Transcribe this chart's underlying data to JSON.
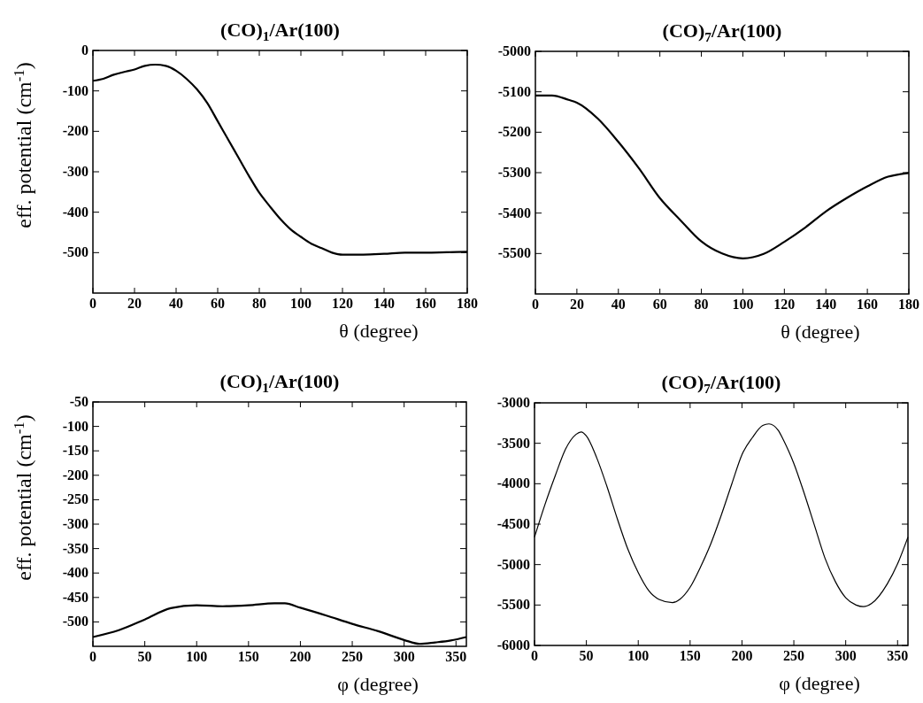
{
  "chart_data": [
    {
      "type": "line",
      "title": "(CO)$_{1}$/Ar(100)",
      "xlabel": "θ (degree)",
      "ylabel": "eff. potential (cm$^{-1}$)",
      "xlim": [
        0,
        180
      ],
      "xticks": [
        0,
        20,
        40,
        60,
        80,
        100,
        120,
        140,
        160,
        180
      ],
      "ylim": [
        -600,
        0
      ],
      "yticks": [
        0,
        -100,
        -200,
        -300,
        -400,
        -500
      ],
      "series": [
        {
          "color": "#000000",
          "x": [
            0,
            5,
            10,
            15,
            20,
            25,
            30,
            35,
            40,
            45,
            50,
            55,
            60,
            65,
            70,
            75,
            80,
            85,
            90,
            95,
            100,
            105,
            110,
            115,
            120,
            130,
            140,
            150,
            160,
            170,
            180
          ],
          "values": [
            -75,
            -70,
            -60,
            -53,
            -47,
            -38,
            -35,
            -38,
            -50,
            -70,
            -96,
            -130,
            -175,
            -220,
            -265,
            -310,
            -352,
            -385,
            -416,
            -442,
            -461,
            -478,
            -489,
            -500,
            -505,
            -505,
            -503,
            -500,
            -500,
            -499,
            -498
          ]
        }
      ]
    },
    {
      "type": "line",
      "title": "(CO)$_{7}$/Ar(100)",
      "xlabel": "θ (degree)",
      "xlim": [
        0,
        180
      ],
      "xticks": [
        0,
        20,
        40,
        60,
        80,
        100,
        120,
        140,
        160,
        180
      ],
      "ylim": [
        -5600,
        -5000
      ],
      "yticks": [
        -5000,
        -5100,
        -5200,
        -5300,
        -5400,
        -5500
      ],
      "series": [
        {
          "color": "#000000",
          "x": [
            0,
            8,
            16,
            20,
            30,
            40,
            50,
            60,
            70,
            80,
            90,
            100,
            110,
            120,
            130,
            140,
            150,
            160,
            170,
            180
          ],
          "values": [
            -5109,
            -5109,
            -5120,
            -5127,
            -5166,
            -5224,
            -5290,
            -5363,
            -5418,
            -5470,
            -5500,
            -5512,
            -5501,
            -5471,
            -5436,
            -5396,
            -5363,
            -5334,
            -5310,
            -5301
          ]
        }
      ]
    },
    {
      "type": "line",
      "title": "(CO)$_{1}$/Ar(100)",
      "xlabel": "φ (degree)",
      "ylabel": "eff. potential (cm$^{-1}$)",
      "xlim": [
        0,
        360
      ],
      "xticks": [
        0,
        50,
        100,
        150,
        200,
        250,
        300,
        350
      ],
      "ylim": [
        -550,
        -50
      ],
      "yticks": [
        -50,
        -100,
        -150,
        -200,
        -250,
        -300,
        -350,
        -400,
        -450,
        -500
      ],
      "series": [
        {
          "color": "#000000",
          "x": [
            0,
            25,
            50,
            75,
            100,
            125,
            150,
            175,
            185,
            200,
            225,
            250,
            275,
            300,
            315,
            330,
            345,
            360
          ],
          "values": [
            -531,
            -517,
            -495,
            -472,
            -466,
            -468,
            -466,
            -462,
            -462,
            -471,
            -487,
            -504,
            -519,
            -537,
            -545,
            -542,
            -538,
            -531
          ]
        }
      ]
    },
    {
      "type": "line",
      "title": "(CO)$_{7}$/Ar(100)",
      "xlabel": "φ (degree)",
      "xlim": [
        0,
        360
      ],
      "xticks": [
        0,
        50,
        100,
        150,
        200,
        250,
        300,
        350
      ],
      "ylim": [
        -6000,
        -3000
      ],
      "yticks": [
        -3000,
        -3500,
        -4000,
        -4500,
        -5000,
        -5500,
        -6000
      ],
      "series": [
        {
          "color": "#000000",
          "x": [
            0,
            10,
            20,
            30,
            40,
            45,
            50,
            60,
            70,
            80,
            90,
            100,
            110,
            120,
            133,
            140,
            150,
            160,
            170,
            180,
            190,
            200,
            210,
            220,
            226,
            235,
            240,
            250,
            260,
            270,
            280,
            290,
            300,
            310,
            317,
            325,
            340,
            350,
            360
          ],
          "values": [
            -4660,
            -4260,
            -3900,
            -3570,
            -3390,
            -3360,
            -3410,
            -3680,
            -4040,
            -4440,
            -4810,
            -5100,
            -5320,
            -5430,
            -5470,
            -5430,
            -5280,
            -5030,
            -4740,
            -4390,
            -4010,
            -3640,
            -3430,
            -3280,
            -3260,
            -3340,
            -3460,
            -3750,
            -4120,
            -4520,
            -4920,
            -5210,
            -5410,
            -5500,
            -5520,
            -5480,
            -5240,
            -4990,
            -4660
          ]
        }
      ]
    }
  ]
}
